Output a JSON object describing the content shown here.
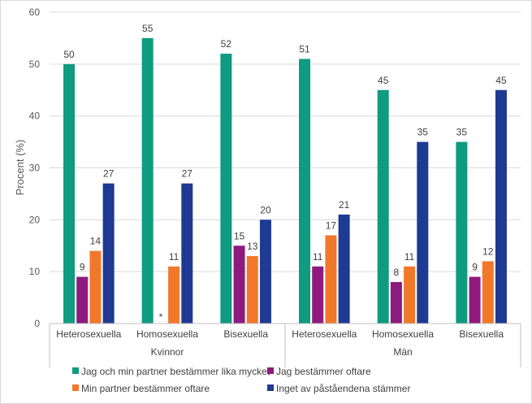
{
  "chart_data": {
    "type": "bar",
    "title": "",
    "ylabel": "Procent (%)",
    "xlabel": "",
    "ylim": [
      0,
      60
    ],
    "yticks": [
      0,
      10,
      20,
      30,
      40,
      50,
      60
    ],
    "grid": true,
    "legend_position": "bottom",
    "groups": [
      {
        "label": "Kvinnor",
        "categories": [
          "Heterosexuella",
          "Homosexuella",
          "Bisexuella"
        ]
      },
      {
        "label": "Män",
        "categories": [
          "Heterosexuella",
          "Homosexuella",
          "Bisexuella"
        ]
      }
    ],
    "categories": [
      "Heterosexuella",
      "Homosexuella",
      "Bisexuella",
      "Heterosexuella",
      "Homosexuella",
      "Bisexuella"
    ],
    "series": [
      {
        "name": "Jag och min partner bestämmer lika mycket",
        "color": "#0f9b7f",
        "values": [
          50,
          55,
          52,
          51,
          45,
          35
        ],
        "labels": [
          "50",
          "55",
          "52",
          "51",
          "45",
          "35"
        ]
      },
      {
        "name": "Jag bestämmer oftare",
        "color": "#8f1a7e",
        "values": [
          9,
          null,
          15,
          11,
          8,
          9
        ],
        "labels": [
          "9",
          "*",
          "15",
          "11",
          "8",
          "9"
        ]
      },
      {
        "name": "Min partner bestämmer oftare",
        "color": "#f1782b",
        "values": [
          14,
          11,
          13,
          17,
          11,
          12
        ],
        "labels": [
          "14",
          "11",
          "13",
          "17",
          "11",
          "12"
        ]
      },
      {
        "name": "Inget av påståendena stämmer",
        "color": "#1f3a93",
        "values": [
          27,
          27,
          20,
          21,
          35,
          45
        ],
        "labels": [
          "27",
          "27",
          "20",
          "21",
          "35",
          "45"
        ]
      }
    ]
  }
}
